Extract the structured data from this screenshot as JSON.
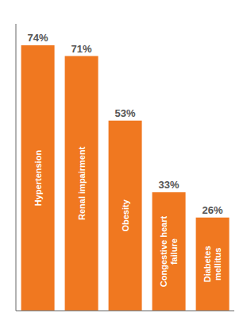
{
  "chart_data": {
    "type": "bar",
    "categories": [
      "Hypertension",
      "Renal impairment",
      "Obesity",
      "Congestive heart\nfailure",
      "Diabetes\nmellitus"
    ],
    "values": [
      74,
      71,
      53,
      33,
      26
    ],
    "value_labels": [
      "74%",
      "71%",
      "53%",
      "33%",
      "26%"
    ],
    "color": "#F07820",
    "ylim": [
      0,
      80
    ],
    "yticks": [
      0,
      20,
      40,
      60,
      80
    ],
    "grid": false,
    "data_labels": true,
    "tick_labels": false
  }
}
